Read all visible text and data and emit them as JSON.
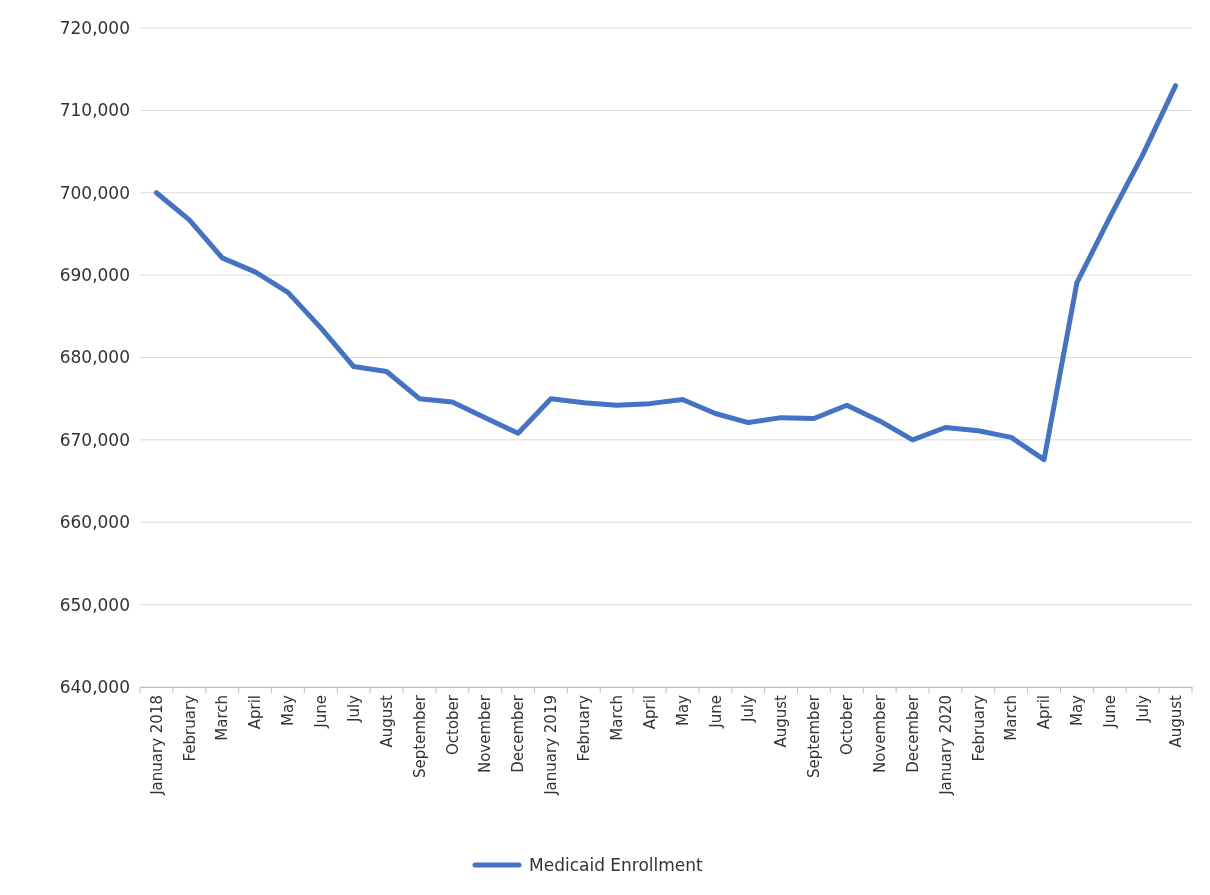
{
  "chart_data": {
    "type": "line",
    "categories": [
      "January 2018",
      "February",
      "March",
      "April",
      "May",
      "June",
      "July",
      "August",
      "September",
      "October",
      "November",
      "December",
      "January 2019",
      "February",
      "March",
      "April",
      "May",
      "June",
      "July",
      "August",
      "September",
      "October",
      "November",
      "December",
      "January 2020",
      "February",
      "March",
      "April",
      "May",
      "June",
      "July",
      "August"
    ],
    "series": [
      {
        "name": "Medicaid Enrollment",
        "color": "#4472c4",
        "values": [
          700000,
          696700,
          692100,
          690400,
          687900,
          683600,
          678900,
          678300,
          675000,
          674600,
          672700,
          670800,
          675000,
          674500,
          674200,
          674400,
          674900,
          673200,
          672100,
          672700,
          672600,
          674200,
          672300,
          670000,
          671500,
          671100,
          670300,
          667600,
          689100,
          697000,
          704600,
          713000
        ]
      }
    ],
    "ylim": [
      640000,
      720000
    ],
    "yticks": [
      {
        "value": 640000,
        "label": "640,000"
      },
      {
        "value": 650000,
        "label": "650,000"
      },
      {
        "value": 660000,
        "label": "660,000"
      },
      {
        "value": 670000,
        "label": "670,000"
      },
      {
        "value": 680000,
        "label": "680,000"
      },
      {
        "value": 690000,
        "label": "690,000"
      },
      {
        "value": 700000,
        "label": "700,000"
      },
      {
        "value": 710000,
        "label": "710,000"
      },
      {
        "value": 720000,
        "label": "720,000"
      }
    ],
    "grid": "y",
    "legend": "bottom",
    "marker": "none",
    "line_style": "solid"
  }
}
